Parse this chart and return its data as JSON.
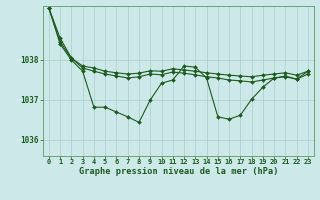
{
  "background_color": "#cce8e8",
  "grid_color": "#aacccc",
  "line_color": "#1a5c1a",
  "spine_color": "#5a9a5a",
  "title": "Graphe pression niveau de la mer (hPa)",
  "xlim": [
    -0.5,
    23.5
  ],
  "ylim": [
    1035.6,
    1039.35
  ],
  "yticks": [
    1036,
    1037,
    1038
  ],
  "xticks": [
    0,
    1,
    2,
    3,
    4,
    5,
    6,
    7,
    8,
    9,
    10,
    11,
    12,
    13,
    14,
    15,
    16,
    17,
    18,
    19,
    20,
    21,
    22,
    23
  ],
  "series1_x": [
    0,
    1,
    2,
    3,
    4,
    5,
    6,
    7,
    8,
    9,
    10,
    11,
    12,
    13,
    14,
    15,
    16,
    17,
    18,
    19,
    20,
    21,
    22,
    23
  ],
  "series1": [
    1039.3,
    1038.55,
    1038.05,
    1037.85,
    1037.8,
    1037.72,
    1037.68,
    1037.65,
    1037.67,
    1037.73,
    1037.72,
    1037.78,
    1037.75,
    1037.72,
    1037.68,
    1037.65,
    1037.62,
    1037.6,
    1037.58,
    1037.62,
    1037.65,
    1037.68,
    1037.62,
    1037.72
  ],
  "series2_x": [
    0,
    1,
    2,
    3,
    4,
    5,
    6,
    7,
    8,
    9,
    10,
    11,
    12,
    13,
    14,
    15,
    16,
    17,
    18,
    19,
    20,
    21,
    22,
    23
  ],
  "series2": [
    1039.3,
    1038.45,
    1038.05,
    1037.8,
    1037.72,
    1037.65,
    1037.6,
    1037.55,
    1037.58,
    1037.65,
    1037.63,
    1037.7,
    1037.67,
    1037.63,
    1037.58,
    1037.55,
    1037.5,
    1037.48,
    1037.45,
    1037.5,
    1037.55,
    1037.58,
    1037.52,
    1037.65
  ],
  "series3_x": [
    0,
    1,
    2,
    3,
    4,
    5,
    6,
    7,
    8,
    9,
    10,
    11,
    12,
    13,
    14,
    15,
    16,
    17,
    18,
    19,
    20,
    21,
    22,
    23
  ],
  "series3": [
    1039.3,
    1038.4,
    1038.0,
    1037.72,
    1036.82,
    1036.82,
    1036.7,
    1036.58,
    1036.44,
    1037.0,
    1037.42,
    1037.5,
    1037.85,
    1037.82,
    1037.55,
    1036.58,
    1036.52,
    1036.62,
    1037.02,
    1037.32,
    1037.55,
    1037.6,
    1037.52,
    1037.72
  ],
  "marker": "D",
  "marker_size": 2.0,
  "linewidth": 0.8,
  "tick_fontsize": 5.0,
  "title_fontsize": 6.2
}
